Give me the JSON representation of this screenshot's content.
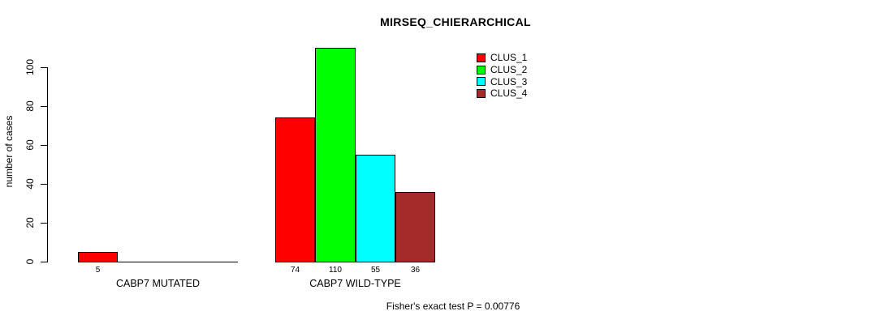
{
  "chart_data": {
    "type": "bar",
    "title": "MIRSEQ_CHIERARCHICAL",
    "xlabel": "",
    "ylabel": "number of cases",
    "ylim": [
      0,
      100
    ],
    "yticks": [
      0,
      20,
      40,
      60,
      80,
      100
    ],
    "grid": false,
    "legend_position": "top-right",
    "categories": [
      "CABP7 MUTATED",
      "CABP7 WILD-TYPE"
    ],
    "series": [
      {
        "name": "CLUS_1",
        "color": "#FF0000",
        "values": [
          5,
          74
        ]
      },
      {
        "name": "CLUS_2",
        "color": "#00FF00",
        "values": [
          0,
          110
        ]
      },
      {
        "name": "CLUS_3",
        "color": "#00FFFF",
        "values": [
          0,
          55
        ]
      },
      {
        "name": "CLUS_4",
        "color": "#A52A2A",
        "values": [
          0,
          36
        ]
      }
    ],
    "bar_value_labels": {
      "CABP7 MUTATED": [
        5,
        null,
        null,
        null
      ],
      "CABP7 WILD-TYPE": [
        74,
        110,
        55,
        36
      ]
    },
    "annotation": "Fisher's exact test P = 0.00776"
  },
  "colors": {
    "axis": "#000000",
    "background": "#FFFFFF",
    "clus_1": "#FF0000",
    "clus_2": "#00FF00",
    "clus_3": "#00FFFF",
    "clus_4": "#A52A2A"
  }
}
